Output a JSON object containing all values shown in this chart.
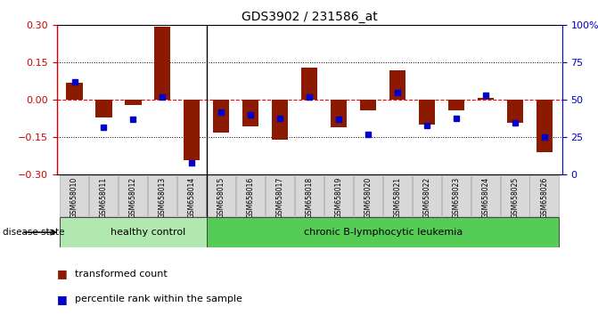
{
  "title": "GDS3902 / 231586_at",
  "samples": [
    "GSM658010",
    "GSM658011",
    "GSM658012",
    "GSM658013",
    "GSM658014",
    "GSM658015",
    "GSM658016",
    "GSM658017",
    "GSM658018",
    "GSM658019",
    "GSM658020",
    "GSM658021",
    "GSM658022",
    "GSM658023",
    "GSM658024",
    "GSM658025",
    "GSM658026"
  ],
  "red_values": [
    0.07,
    -0.07,
    -0.02,
    0.295,
    -0.24,
    -0.13,
    -0.105,
    -0.16,
    0.13,
    -0.11,
    -0.04,
    0.12,
    -0.1,
    -0.04,
    0.01,
    -0.09,
    -0.21
  ],
  "blue_percentiles": [
    62,
    32,
    37,
    52,
    8,
    42,
    40,
    38,
    52,
    37,
    27,
    55,
    33,
    38,
    53,
    35,
    25
  ],
  "ylim": [
    -0.3,
    0.3
  ],
  "yticks_left": [
    -0.3,
    -0.15,
    0.0,
    0.15,
    0.3
  ],
  "yticks_right": [
    0,
    25,
    50,
    75,
    100
  ],
  "healthy_count": 5,
  "healthy_label": "healthy control",
  "disease_label": "chronic B-lymphocytic leukemia",
  "disease_state_label": "disease state",
  "legend_red": "transformed count",
  "legend_blue": "percentile rank within the sample",
  "healthy_color": "#b0e8b0",
  "disease_color": "#55cc55",
  "bar_color": "#8b1a00",
  "blue_color": "#0000cc",
  "red_axis_color": "#cc0000",
  "blue_axis_color": "#0000cc",
  "background_color": "#ffffff",
  "tick_bg_color": "#d8d8d8"
}
